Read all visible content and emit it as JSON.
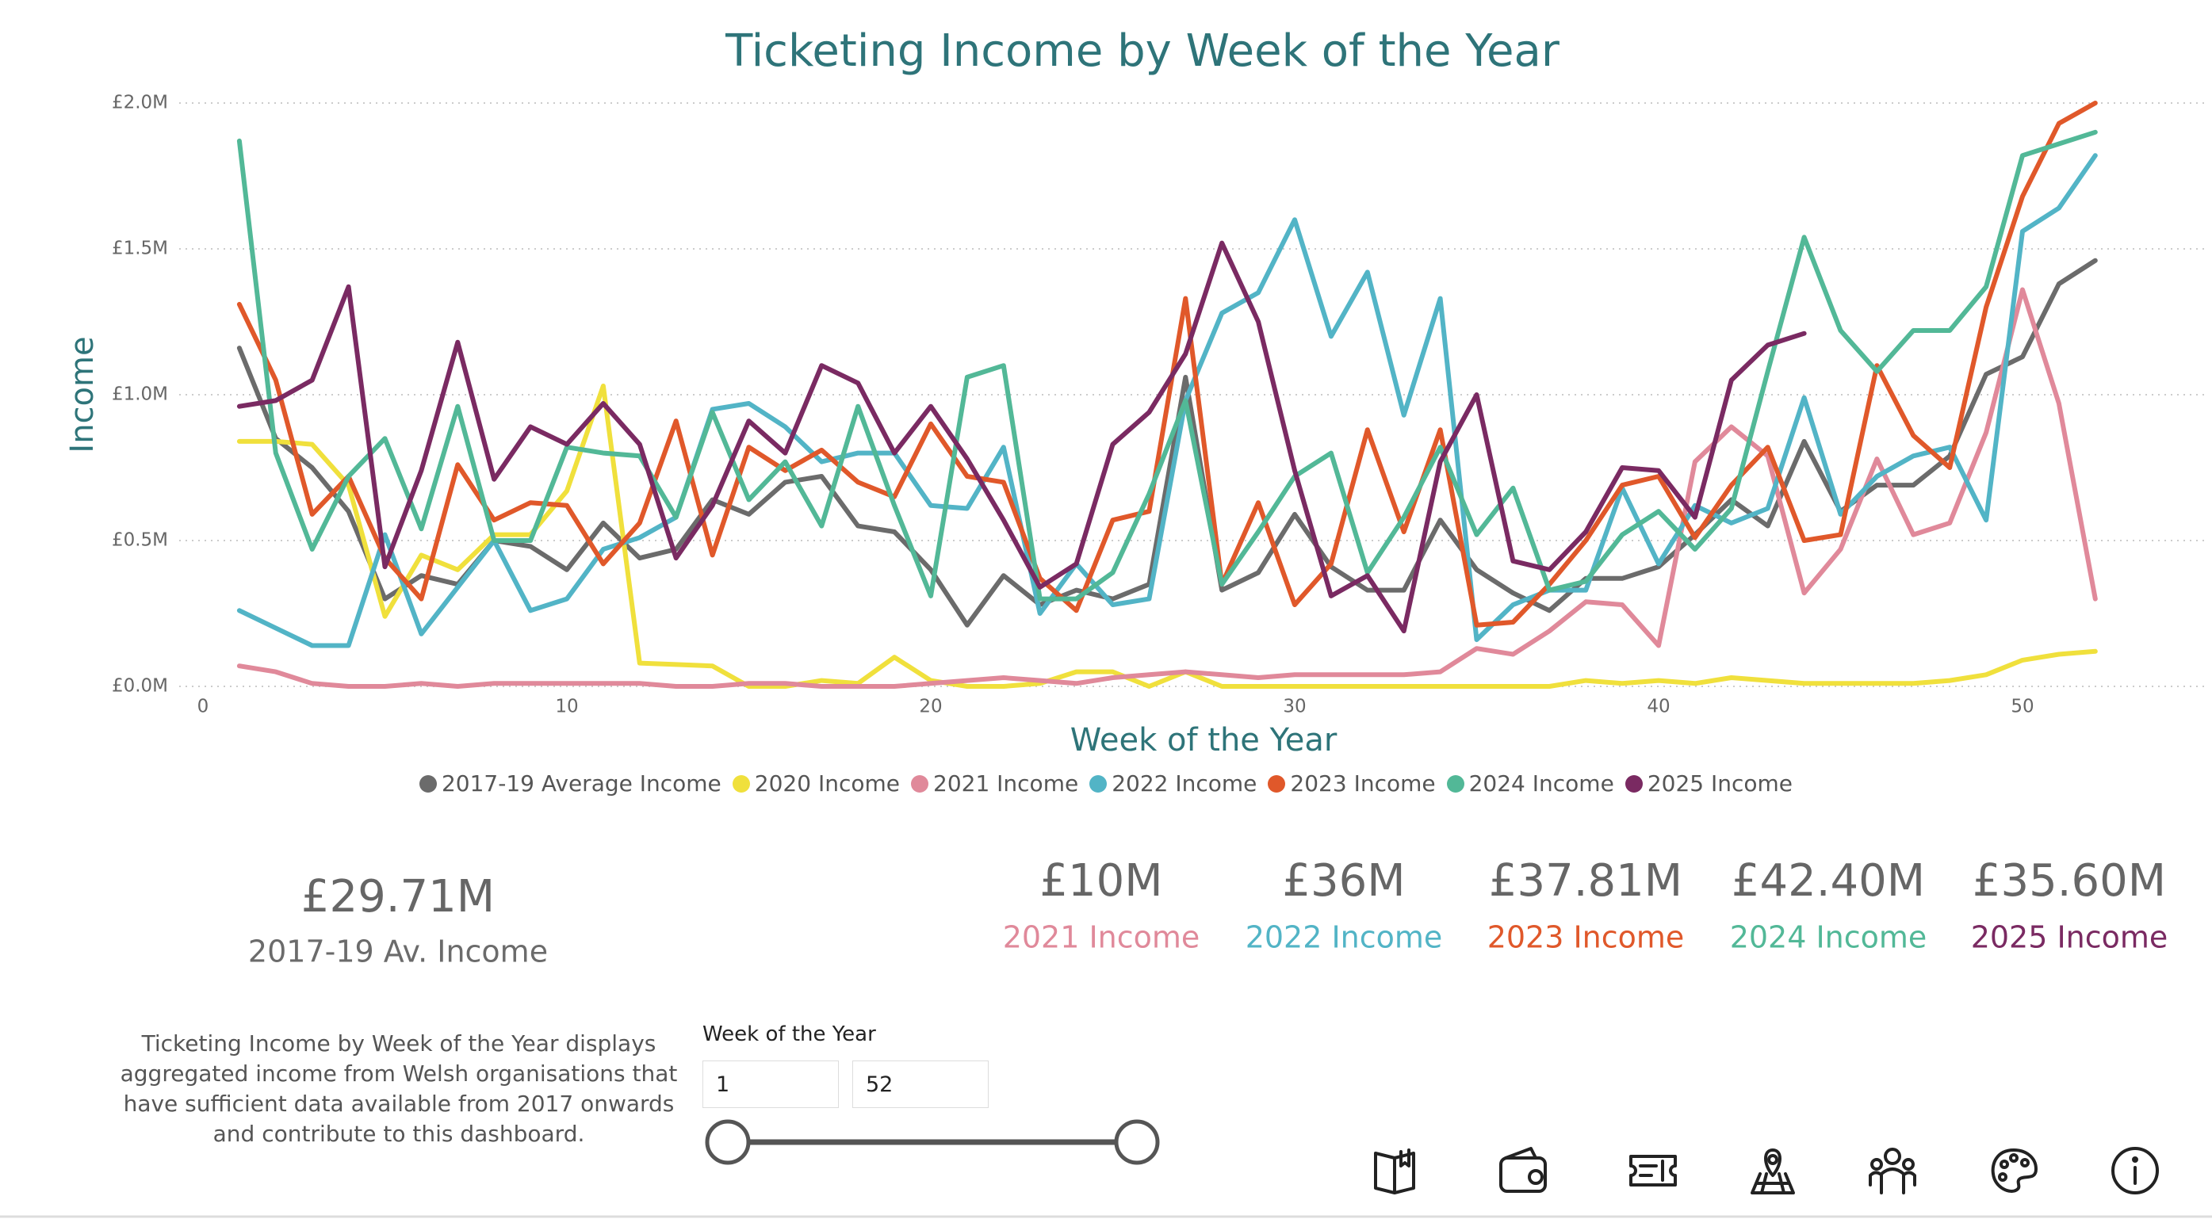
{
  "chart_data": {
    "type": "line",
    "title": "Ticketing Income by Week of the Year",
    "x_label": "Week of the Year",
    "y_label": "Income",
    "x": [
      1,
      2,
      3,
      4,
      5,
      6,
      7,
      8,
      9,
      10,
      11,
      12,
      13,
      14,
      15,
      16,
      17,
      18,
      19,
      20,
      21,
      22,
      23,
      24,
      25,
      26,
      27,
      28,
      29,
      30,
      31,
      32,
      33,
      34,
      35,
      36,
      37,
      38,
      39,
      40,
      41,
      42,
      43,
      44,
      45,
      46,
      47,
      48,
      49,
      50,
      51,
      52
    ],
    "xlim": [
      0,
      55
    ],
    "xticks": [
      0,
      10,
      20,
      30,
      40,
      50
    ],
    "ylim": [
      0,
      2.0
    ],
    "yticks": [
      {
        "value": 0,
        "label": "£0.0M"
      },
      {
        "value": 0.5,
        "label": "£0.5M"
      },
      {
        "value": 1.0,
        "label": "£1.0M"
      },
      {
        "value": 1.5,
        "label": "£1.5M"
      },
      {
        "value": 2.0,
        "label": "£2.0M"
      }
    ],
    "grid": true,
    "legend": "bottom",
    "series": [
      {
        "name": "2017-19 Average Income",
        "color": "#6b6b6b",
        "values": [
          1.16,
          0.85,
          0.75,
          0.6,
          0.3,
          0.38,
          0.35,
          0.5,
          0.48,
          0.4,
          0.56,
          0.44,
          0.47,
          0.64,
          0.59,
          0.7,
          0.72,
          0.55,
          0.53,
          0.4,
          0.21,
          0.38,
          0.28,
          0.33,
          0.3,
          0.35,
          1.06,
          0.33,
          0.39,
          0.59,
          0.41,
          0.33,
          0.33,
          0.57,
          0.4,
          0.32,
          0.26,
          0.37,
          0.37,
          0.41,
          0.52,
          0.64,
          0.55,
          0.84,
          0.6,
          0.69,
          0.69,
          0.79,
          1.07,
          1.13,
          1.38,
          1.46
        ]
      },
      {
        "name": "2020 Income",
        "color": "#f0e03c",
        "values": [
          0.84,
          0.84,
          0.83,
          0.69,
          0.24,
          0.45,
          0.4,
          0.52,
          0.52,
          0.67,
          1.03,
          0.08,
          0.075,
          0.07,
          0.0,
          0.0,
          0.02,
          0.01,
          0.1,
          0.02,
          0.0,
          0.0,
          0.01,
          0.05,
          0.05,
          0.0,
          0.05,
          0.0,
          0.0,
          0.0,
          0.0,
          0.0,
          0.0,
          0.0,
          0.0,
          0.0,
          0.0,
          0.02,
          0.01,
          0.02,
          0.01,
          0.03,
          0.02,
          0.01,
          0.01,
          0.01,
          0.01,
          0.02,
          0.04,
          0.09,
          0.11,
          0.12
        ]
      },
      {
        "name": "2021 Income",
        "color": "#e0899a",
        "values": [
          0.07,
          0.05,
          0.01,
          0.0,
          0.0,
          0.01,
          0.0,
          0.01,
          0.01,
          0.01,
          0.01,
          0.01,
          0.0,
          0.0,
          0.01,
          0.01,
          0.0,
          0.0,
          0.0,
          0.01,
          0.02,
          0.03,
          0.02,
          0.01,
          0.03,
          0.04,
          0.05,
          0.04,
          0.03,
          0.04,
          0.04,
          0.04,
          0.04,
          0.05,
          0.13,
          0.11,
          0.19,
          0.29,
          0.28,
          0.14,
          0.77,
          0.89,
          0.79,
          0.32,
          0.47,
          0.78,
          0.52,
          0.56,
          0.87,
          1.36,
          0.97,
          0.3
        ]
      },
      {
        "name": "2022 Income",
        "color": "#52b4c6",
        "values": [
          0.26,
          0.2,
          0.14,
          0.14,
          0.52,
          0.18,
          0.34,
          0.5,
          0.26,
          0.3,
          0.47,
          0.51,
          0.58,
          0.95,
          0.97,
          0.89,
          0.77,
          0.8,
          0.8,
          0.62,
          0.61,
          0.82,
          0.25,
          0.42,
          0.28,
          0.3,
          0.98,
          1.28,
          1.35,
          1.6,
          1.2,
          1.42,
          0.93,
          1.33,
          0.16,
          0.28,
          0.33,
          0.33,
          0.68,
          0.42,
          0.62,
          0.56,
          0.61,
          0.99,
          0.59,
          0.72,
          0.79,
          0.82,
          0.57,
          1.56,
          1.64,
          1.82
        ]
      },
      {
        "name": "2023 Income",
        "color": "#e0582a",
        "values": [
          1.31,
          1.05,
          0.59,
          0.72,
          0.44,
          0.3,
          0.76,
          0.57,
          0.63,
          0.62,
          0.42,
          0.56,
          0.91,
          0.45,
          0.82,
          0.74,
          0.81,
          0.7,
          0.65,
          0.9,
          0.72,
          0.7,
          0.37,
          0.26,
          0.57,
          0.6,
          1.33,
          0.35,
          0.63,
          0.28,
          0.42,
          0.88,
          0.53,
          0.88,
          0.21,
          0.22,
          0.35,
          0.5,
          0.69,
          0.72,
          0.51,
          0.69,
          0.82,
          0.5,
          0.52,
          1.1,
          0.86,
          0.75,
          1.3,
          1.68,
          1.93,
          2.0
        ]
      },
      {
        "name": "2024 Income",
        "color": "#52b897",
        "values": [
          1.87,
          0.8,
          0.47,
          0.72,
          0.85,
          0.54,
          0.96,
          0.5,
          0.5,
          0.82,
          0.8,
          0.79,
          0.58,
          0.94,
          0.64,
          0.77,
          0.55,
          0.96,
          0.62,
          0.31,
          1.06,
          1.1,
          0.3,
          0.3,
          0.39,
          0.66,
          0.98,
          0.35,
          0.53,
          0.72,
          0.8,
          0.39,
          0.58,
          0.82,
          0.52,
          0.68,
          0.33,
          0.36,
          0.52,
          0.6,
          0.47,
          0.61,
          1.08,
          1.54,
          1.22,
          1.08,
          1.22,
          1.22,
          1.37,
          1.82,
          1.86,
          1.9
        ]
      },
      {
        "name": "2025 Income",
        "color": "#7a2a62",
        "values": [
          0.96,
          0.98,
          1.05,
          1.37,
          0.41,
          0.74,
          1.18,
          0.71,
          0.89,
          0.83,
          0.97,
          0.83,
          0.44,
          0.62,
          0.91,
          0.8,
          1.1,
          1.04,
          0.8,
          0.96,
          0.78,
          0.57,
          0.34,
          0.42,
          0.83,
          0.94,
          1.14,
          1.52,
          1.25,
          0.74,
          0.31,
          0.38,
          0.19,
          0.77,
          1.0,
          0.43,
          0.4,
          0.53,
          0.75,
          0.74,
          0.58,
          1.05,
          1.17,
          1.21,
          null,
          null,
          null,
          null,
          null,
          null,
          null,
          null
        ]
      }
    ]
  },
  "kpis": [
    {
      "value": "£29.71M",
      "label": "2017-19 Av. Income",
      "color": "#6b6b6b"
    },
    {
      "value": "£10M",
      "label": "2021 Income",
      "color": "#e0899a"
    },
    {
      "value": "£36M",
      "label": "2022 Income",
      "color": "#52b4c6"
    },
    {
      "value": "£37.81M",
      "label": "2023 Income",
      "color": "#e0582a"
    },
    {
      "value": "£42.40M",
      "label": "2024 Income",
      "color": "#52b897"
    },
    {
      "value": "£35.60M",
      "label": "2025 Income",
      "color": "#7a2a62"
    }
  ],
  "description": "Ticketing Income by Week of the Year displays aggregated income from Welsh organisations that have sufficient data available from 2017 onwards and contribute to this dashboard.",
  "slider": {
    "label": "Week of the Year",
    "min": "1",
    "max": "52"
  }
}
